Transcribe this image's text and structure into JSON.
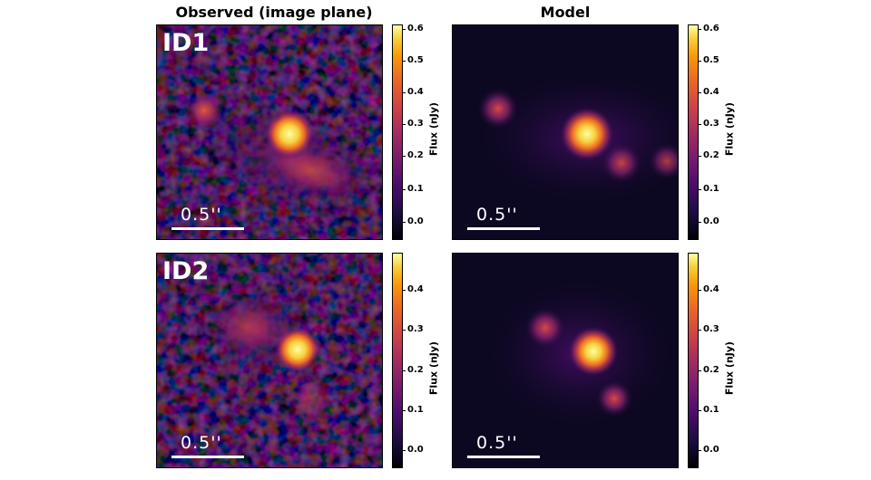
{
  "titles": {
    "observed": "Observed (image plane)",
    "model": "Model"
  },
  "rows": [
    {
      "id": "ID1",
      "scale": "0.5''",
      "colorbar": {
        "label": "Flux (nJy)",
        "ticks": [
          "0.6",
          "0.5",
          "0.4",
          "0.3",
          "0.2",
          "0.1",
          "0.0"
        ]
      }
    },
    {
      "id": "ID2",
      "scale": "0.5''",
      "colorbar": {
        "label": "Flux (nJy)",
        "ticks": [
          "0.4",
          "0.3",
          "0.2",
          "0.1",
          "0.0"
        ]
      }
    }
  ],
  "colormap": "inferno"
}
